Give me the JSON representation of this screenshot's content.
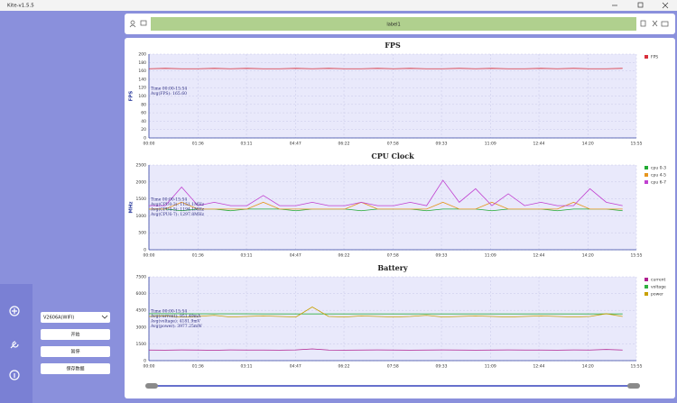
{
  "window": {
    "title": "Kite-v1.5.5"
  },
  "toolbar": {
    "label": "label1"
  },
  "controls": {
    "device": "V2606A(WIFI)",
    "buttons": [
      "开始",
      "暂停",
      "保存数据"
    ]
  },
  "chart_data": [
    {
      "type": "line",
      "title": "FPS",
      "y_label": "FPS",
      "x": [
        0,
        32,
        64,
        96,
        128,
        160,
        192,
        224,
        256,
        288,
        320,
        352,
        384,
        416,
        448,
        480,
        512,
        544,
        576,
        608,
        640,
        672,
        704,
        736,
        768,
        800,
        832,
        864,
        896,
        928
      ],
      "xlim": [
        0,
        955
      ],
      "xticks": [
        {
          "value": 0,
          "label": "00:00"
        },
        {
          "value": 96,
          "label": "01:36"
        },
        {
          "value": 191,
          "label": "03:11"
        },
        {
          "value": 287,
          "label": "04:47"
        },
        {
          "value": 382,
          "label": "06:22"
        },
        {
          "value": 478,
          "label": "07:58"
        },
        {
          "value": 573,
          "label": "09:33"
        },
        {
          "value": 669,
          "label": "11:09"
        },
        {
          "value": 764,
          "label": "12:44"
        },
        {
          "value": 860,
          "label": "14:20"
        },
        {
          "value": 955,
          "label": "15:55"
        }
      ],
      "ylim": [
        0,
        200
      ],
      "yticks": [
        0,
        20,
        40,
        60,
        80,
        100,
        120,
        140,
        160,
        180,
        200
      ],
      "grid": true,
      "annotations": [
        "Time 00:00-15:54",
        "Avg(FPS): 165.60"
      ],
      "series": [
        {
          "name": "FPS",
          "color": "#d8303c",
          "values": [
            165,
            166,
            165,
            165,
            166,
            165,
            166,
            165,
            165,
            166,
            165,
            166,
            165,
            165,
            166,
            165,
            166,
            165,
            165,
            166,
            165,
            166,
            165,
            165,
            166,
            165,
            166,
            165,
            165,
            166
          ]
        }
      ]
    },
    {
      "type": "line",
      "title": "CPU Clock",
      "y_label": "MHz",
      "x": [
        0,
        32,
        64,
        96,
        128,
        160,
        192,
        224,
        256,
        288,
        320,
        352,
        384,
        416,
        448,
        480,
        512,
        544,
        576,
        608,
        640,
        672,
        704,
        736,
        768,
        800,
        832,
        864,
        896,
        928
      ],
      "xlim": [
        0,
        955
      ],
      "xticks": [
        {
          "value": 0,
          "label": "00:00"
        },
        {
          "value": 96,
          "label": "01:36"
        },
        {
          "value": 191,
          "label": "03:11"
        },
        {
          "value": 287,
          "label": "04:47"
        },
        {
          "value": 382,
          "label": "06:22"
        },
        {
          "value": 478,
          "label": "07:58"
        },
        {
          "value": 573,
          "label": "09:33"
        },
        {
          "value": 669,
          "label": "11:09"
        },
        {
          "value": 764,
          "label": "12:44"
        },
        {
          "value": 860,
          "label": "14:20"
        },
        {
          "value": 955,
          "label": "15:55"
        }
      ],
      "ylim": [
        0,
        2500
      ],
      "yticks": [
        0,
        500,
        1000,
        1500,
        2000,
        2500
      ],
      "grid": true,
      "annotations": [
        "Time 00:00-15:54",
        "Avg(CPU0-3): 1151.1MHz",
        "Avg(CPU4-5): 1194.1MHz",
        "Avg(CPU6-7): 1297.8MHz"
      ],
      "series": [
        {
          "name": "cpu 0-3",
          "color": "#22aa33",
          "values": [
            1200,
            1200,
            1150,
            1200,
            1200,
            1150,
            1200,
            1200,
            1200,
            1150,
            1200,
            1200,
            1200,
            1150,
            1200,
            1200,
            1200,
            1150,
            1200,
            1200,
            1200,
            1150,
            1200,
            1200,
            1200,
            1150,
            1200,
            1200,
            1200,
            1150
          ]
        },
        {
          "name": "cpu 4-5",
          "color": "#e6961e",
          "values": [
            1200,
            1200,
            1400,
            1200,
            1200,
            1200,
            1200,
            1400,
            1200,
            1200,
            1200,
            1200,
            1200,
            1400,
            1200,
            1200,
            1200,
            1200,
            1400,
            1200,
            1200,
            1400,
            1200,
            1200,
            1200,
            1200,
            1400,
            1200,
            1200,
            1200
          ]
        },
        {
          "name": "cpu 6-7",
          "color": "#c040d0",
          "values": [
            1300,
            1300,
            1850,
            1300,
            1400,
            1300,
            1300,
            1600,
            1300,
            1300,
            1400,
            1300,
            1300,
            1400,
            1300,
            1300,
            1400,
            1300,
            2050,
            1400,
            1800,
            1300,
            1650,
            1300,
            1400,
            1300,
            1300,
            1800,
            1400,
            1300
          ]
        }
      ]
    },
    {
      "type": "line",
      "title": "Battery",
      "x": [
        0,
        32,
        64,
        96,
        128,
        160,
        192,
        224,
        256,
        288,
        320,
        352,
        384,
        416,
        448,
        480,
        512,
        544,
        576,
        608,
        640,
        672,
        704,
        736,
        768,
        800,
        832,
        864,
        896,
        928
      ],
      "xlim": [
        0,
        955
      ],
      "xticks": [
        {
          "value": 0,
          "label": "00:00"
        },
        {
          "value": 96,
          "label": "01:36"
        },
        {
          "value": 191,
          "label": "03:11"
        },
        {
          "value": 287,
          "label": "04:47"
        },
        {
          "value": 382,
          "label": "06:22"
        },
        {
          "value": 478,
          "label": "07:58"
        },
        {
          "value": 573,
          "label": "09:33"
        },
        {
          "value": 669,
          "label": "11:09"
        },
        {
          "value": 764,
          "label": "12:44"
        },
        {
          "value": 860,
          "label": "14:20"
        },
        {
          "value": 955,
          "label": "15:55"
        }
      ],
      "ylim": [
        0,
        7500
      ],
      "yticks": [
        0,
        1500,
        3000,
        4500,
        6000,
        7500
      ],
      "grid": true,
      "annotations": [
        "Time 00:00-15:54",
        "Avg(current): 951.49mA",
        "Avg(voltage): 4181.9mV",
        "Avg(power): 3977.25mW"
      ],
      "series": [
        {
          "name": "current",
          "color": "#b02090",
          "values": [
            950,
            940,
            960,
            950,
            930,
            960,
            950,
            950,
            940,
            960,
            1050,
            950,
            940,
            950,
            960,
            950,
            940,
            950,
            960,
            950,
            940,
            950,
            960,
            950,
            950,
            940,
            960,
            950,
            1000,
            950
          ]
        },
        {
          "name": "voltage",
          "color": "#30b040",
          "values": [
            4200,
            4200,
            4200,
            4190,
            4190,
            4190,
            4190,
            4180,
            4180,
            4180,
            4180,
            4180,
            4180,
            4180,
            4180,
            4180,
            4180,
            4180,
            4180,
            4180,
            4180,
            4180,
            4180,
            4180,
            4180,
            4180,
            4180,
            4180,
            4180,
            4180
          ]
        },
        {
          "name": "power",
          "color": "#c8a000",
          "values": [
            3950,
            4000,
            3900,
            3950,
            4050,
            3900,
            3950,
            4000,
            3950,
            3900,
            4800,
            3950,
            3900,
            4000,
            3950,
            3900,
            3950,
            4050,
            3900,
            3950,
            4000,
            3950,
            3900,
            3950,
            4000,
            3950,
            3900,
            3950,
            4200,
            3950
          ]
        }
      ]
    }
  ]
}
